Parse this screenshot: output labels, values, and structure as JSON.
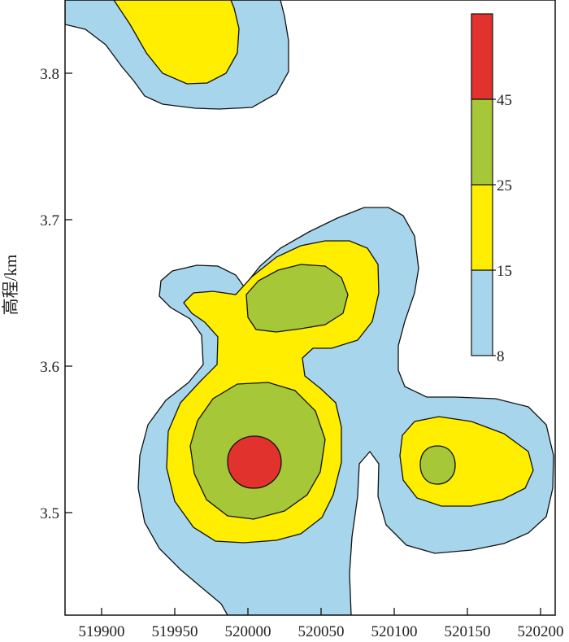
{
  "chart_data": {
    "type": "heatmap",
    "subtype": "filled-contour",
    "ylabel": "高程/km",
    "xlabel": "",
    "title": "",
    "xlim": [
      519875,
      520210
    ],
    "ylim": [
      3.43,
      3.85
    ],
    "xticks": [
      519900,
      519950,
      520000,
      520050,
      520100,
      520150,
      520200
    ],
    "xtick_labels": [
      "519900",
      "519950",
      "520000",
      "520050",
      "520100",
      "520150",
      "520200"
    ],
    "yticks": [
      3.5,
      3.6,
      3.7,
      3.8
    ],
    "ytick_labels": [
      "3.5",
      "3.6",
      "3.7",
      "3.8"
    ],
    "contour_levels": [
      8,
      15,
      25,
      45
    ],
    "colorbar": {
      "tick_labels": [
        "8",
        "15",
        "25",
        "45"
      ],
      "placement": "top-right",
      "bands": [
        {
          "from": 8,
          "to": 15,
          "color": "#a6d5ec"
        },
        {
          "from": 15,
          "to": 25,
          "color": "#ffee00"
        },
        {
          "from": 25,
          "to": 45,
          "color": "#a6c738"
        },
        {
          "from": 45,
          "to": null,
          "color": "#e2322e"
        }
      ]
    },
    "features": [
      {
        "name": "north anomaly",
        "peak_level": 15,
        "center": [
          519960,
          3.83
        ]
      },
      {
        "name": "central-north anomaly",
        "peak_level": 25,
        "center": [
          520045,
          3.64
        ]
      },
      {
        "name": "main anomaly",
        "peak_level": 45,
        "center": [
          520008,
          3.537
        ]
      },
      {
        "name": "east anomaly",
        "peak_level": 25,
        "center": [
          520130,
          3.533
        ]
      }
    ],
    "grid": false
  }
}
